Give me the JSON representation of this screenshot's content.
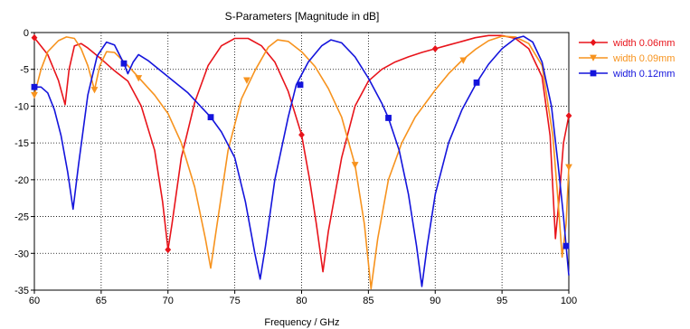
{
  "chart_data": {
    "type": "line",
    "title": "S-Parameters [Magnitude in dB]",
    "xlabel": "Frequency / GHz",
    "ylabel": "",
    "xlim": [
      60,
      100
    ],
    "ylim": [
      -35,
      0
    ],
    "xticks": [
      "60",
      "65",
      "70",
      "75",
      "80",
      "85",
      "90",
      "95",
      "100"
    ],
    "yticks": [
      "0",
      "-5",
      "-10",
      "-15",
      "-20",
      "-25",
      "-30",
      "-35"
    ],
    "grid": "dotted",
    "legend_position": "top-right",
    "series": [
      {
        "name": "width 0.06mm",
        "color": "#e8141b",
        "marker": "diamond",
        "points": [
          [
            60,
            -0.7
          ],
          [
            61,
            -3
          ],
          [
            61.8,
            -6.5
          ],
          [
            62.3,
            -9.8
          ],
          [
            62.6,
            -5
          ],
          [
            63,
            -1.8
          ],
          [
            63.5,
            -1.5
          ],
          [
            64,
            -2.1
          ],
          [
            65,
            -3.6
          ],
          [
            66,
            -5.2
          ],
          [
            67,
            -6.6
          ],
          [
            68,
            -10
          ],
          [
            69,
            -16
          ],
          [
            69.6,
            -23
          ],
          [
            70,
            -29.5
          ],
          [
            70.3,
            -26
          ],
          [
            71,
            -17
          ],
          [
            72,
            -9.5
          ],
          [
            73,
            -4.5
          ],
          [
            74,
            -1.8
          ],
          [
            75,
            -0.8
          ],
          [
            76,
            -0.8
          ],
          [
            77,
            -1.8
          ],
          [
            78,
            -4
          ],
          [
            79,
            -8
          ],
          [
            80,
            -13.9
          ],
          [
            80.6,
            -20
          ],
          [
            81.1,
            -26
          ],
          [
            81.6,
            -32.5
          ],
          [
            82,
            -27
          ],
          [
            83,
            -17
          ],
          [
            84,
            -10
          ],
          [
            85,
            -6.6
          ],
          [
            86,
            -5
          ],
          [
            87,
            -4
          ],
          [
            88,
            -3.3
          ],
          [
            89,
            -2.7
          ],
          [
            90,
            -2.2
          ],
          [
            91,
            -1.7
          ],
          [
            92,
            -1.2
          ],
          [
            93,
            -0.7
          ],
          [
            94,
            -0.4
          ],
          [
            95,
            -0.4
          ],
          [
            96,
            -0.8
          ],
          [
            97,
            -2.2
          ],
          [
            98,
            -6
          ],
          [
            98.6,
            -14
          ],
          [
            99,
            -28
          ],
          [
            99.3,
            -22
          ],
          [
            99.6,
            -15
          ],
          [
            100,
            -11.3
          ]
        ],
        "markers": [
          [
            60,
            -0.7
          ],
          [
            70,
            -29.5
          ],
          [
            80,
            -13.9
          ],
          [
            90,
            -2.2
          ],
          [
            100,
            -11.3
          ]
        ]
      },
      {
        "name": "width 0.09mm",
        "color": "#f7931e",
        "marker": "triangle-down",
        "points": [
          [
            60,
            -8.5
          ],
          [
            60.5,
            -5
          ],
          [
            61,
            -2.6
          ],
          [
            61.8,
            -1.1
          ],
          [
            62.4,
            -0.6
          ],
          [
            63,
            -0.8
          ],
          [
            63.5,
            -2.2
          ],
          [
            64,
            -4.5
          ],
          [
            64.5,
            -7.8
          ],
          [
            64.9,
            -4.5
          ],
          [
            65.4,
            -2.6
          ],
          [
            66,
            -2.7
          ],
          [
            67,
            -4.5
          ],
          [
            68,
            -6.5
          ],
          [
            69,
            -8.5
          ],
          [
            70,
            -11
          ],
          [
            71,
            -15
          ],
          [
            72,
            -21
          ],
          [
            72.8,
            -28
          ],
          [
            73.2,
            -32
          ],
          [
            73.6,
            -27
          ],
          [
            74.5,
            -16
          ],
          [
            75.5,
            -9
          ],
          [
            76.5,
            -5.2
          ],
          [
            77.5,
            -2
          ],
          [
            78.2,
            -1
          ],
          [
            79,
            -1.2
          ],
          [
            80,
            -2.6
          ],
          [
            81,
            -4.6
          ],
          [
            82,
            -7.6
          ],
          [
            83,
            -11.5
          ],
          [
            84,
            -18
          ],
          [
            84.7,
            -26
          ],
          [
            85.2,
            -34.8
          ],
          [
            85.7,
            -28
          ],
          [
            86.5,
            -20
          ],
          [
            87.5,
            -15
          ],
          [
            88.5,
            -11.5
          ],
          [
            90,
            -7.8
          ],
          [
            91,
            -5.6
          ],
          [
            92,
            -3.8
          ],
          [
            93,
            -2.3
          ],
          [
            94,
            -1.1
          ],
          [
            95,
            -0.5
          ],
          [
            96,
            -0.6
          ],
          [
            97,
            -1.5
          ],
          [
            98,
            -4.5
          ],
          [
            98.8,
            -14
          ],
          [
            99.2,
            -23
          ],
          [
            99.5,
            -30.5
          ],
          [
            99.8,
            -26
          ],
          [
            100,
            -18.3
          ]
        ],
        "markers": [
          [
            60,
            -8.5
          ],
          [
            64.5,
            -7.8
          ],
          [
            67.8,
            -6.2
          ],
          [
            75.9,
            -6.5
          ],
          [
            84,
            -18
          ],
          [
            92.1,
            -3.8
          ],
          [
            100,
            -18.3
          ]
        ]
      },
      {
        "name": "width 0.12mm",
        "color": "#1414dc",
        "marker": "square",
        "points": [
          [
            60,
            -7.4
          ],
          [
            60.5,
            -7.4
          ],
          [
            61,
            -8.2
          ],
          [
            61.5,
            -10.5
          ],
          [
            62,
            -14
          ],
          [
            62.5,
            -19
          ],
          [
            62.9,
            -24
          ],
          [
            63.3,
            -18
          ],
          [
            64,
            -8.5
          ],
          [
            64.7,
            -3.2
          ],
          [
            65.4,
            -1.3
          ],
          [
            66,
            -1.7
          ],
          [
            66.7,
            -4.2
          ],
          [
            67,
            -5.6
          ],
          [
            67.4,
            -4
          ],
          [
            67.8,
            -3
          ],
          [
            68.5,
            -3.8
          ],
          [
            70,
            -6
          ],
          [
            71.5,
            -8.2
          ],
          [
            73.2,
            -11.5
          ],
          [
            74,
            -13.5
          ],
          [
            75,
            -17
          ],
          [
            75.8,
            -23
          ],
          [
            76.5,
            -30
          ],
          [
            76.9,
            -33.5
          ],
          [
            77.3,
            -29
          ],
          [
            78,
            -20
          ],
          [
            79,
            -11.5
          ],
          [
            79.6,
            -7.1
          ],
          [
            80.5,
            -4
          ],
          [
            81.5,
            -1.8
          ],
          [
            82.2,
            -1
          ],
          [
            83,
            -1.4
          ],
          [
            84,
            -3.3
          ],
          [
            85,
            -6.2
          ],
          [
            86,
            -9.6
          ],
          [
            86.5,
            -11.6
          ],
          [
            87.3,
            -16
          ],
          [
            88,
            -22
          ],
          [
            88.6,
            -29
          ],
          [
            89,
            -34.5
          ],
          [
            89.4,
            -29
          ],
          [
            90,
            -22
          ],
          [
            91,
            -15
          ],
          [
            92,
            -10.5
          ],
          [
            93.1,
            -6.8
          ],
          [
            94,
            -4.3
          ],
          [
            95,
            -2.2
          ],
          [
            96,
            -0.8
          ],
          [
            96.6,
            -0.5
          ],
          [
            97.3,
            -1.3
          ],
          [
            98,
            -4
          ],
          [
            98.7,
            -10
          ],
          [
            99.2,
            -18
          ],
          [
            99.6,
            -25
          ],
          [
            99.8,
            -29
          ],
          [
            100,
            -33
          ]
        ],
        "markers": [
          [
            60,
            -7.4
          ],
          [
            66.7,
            -4.2
          ],
          [
            73.2,
            -11.5
          ],
          [
            79.9,
            -7.1
          ],
          [
            86.5,
            -11.6
          ],
          [
            93.1,
            -6.8
          ],
          [
            99.8,
            -29
          ]
        ]
      }
    ]
  }
}
